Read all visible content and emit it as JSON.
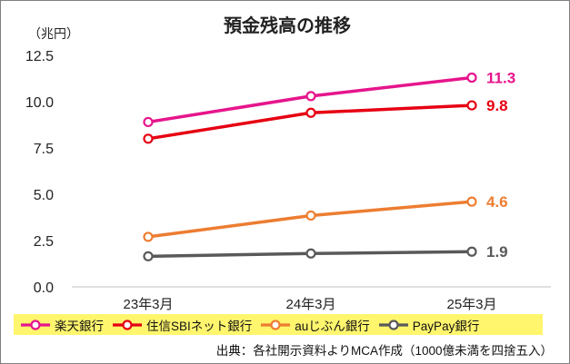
{
  "chart_data": {
    "type": "line",
    "title": "預金残高の推移",
    "unit_label": "（兆円）",
    "categories": [
      "23年3月",
      "24年3月",
      "25年3月"
    ],
    "ylim": [
      0,
      12.5
    ],
    "y_ticks": [
      "0.0",
      "2.5",
      "5.0",
      "7.5",
      "10.0",
      "12.5"
    ],
    "grid": false,
    "legend_position": "bottom",
    "series": [
      {
        "name": "楽天銀行",
        "values": [
          8.9,
          10.3,
          11.3
        ],
        "color": "#e6158c",
        "end_label": "11.3"
      },
      {
        "name": "住信SBIネット銀行",
        "values": [
          8.0,
          9.4,
          9.8
        ],
        "color": "#e60012",
        "end_label": "9.8"
      },
      {
        "name": "auじぶん銀行",
        "values": [
          2.7,
          3.85,
          4.6
        ],
        "color": "#ed7d31",
        "end_label": "4.6"
      },
      {
        "name": "PayPay銀行",
        "values": [
          1.65,
          1.8,
          1.9
        ],
        "color": "#595959",
        "end_label": "1.9"
      }
    ],
    "source": "出典：各社開示資料よりMCA作成（1000億未満を四捨五入）"
  }
}
